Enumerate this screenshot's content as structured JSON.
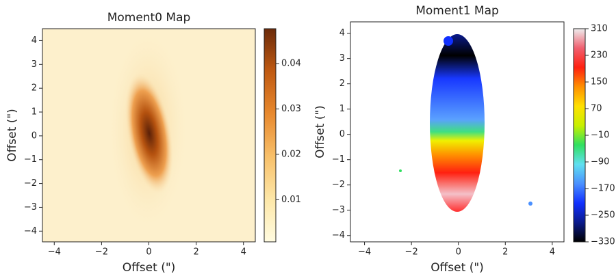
{
  "chart_data": [
    {
      "type": "heatmap",
      "title": "Moment0 Map",
      "xlabel": "Offset (\")",
      "ylabel": "Offset (\")",
      "xlim": [
        -4.5,
        4.5
      ],
      "ylim": [
        -4.45,
        4.5
      ],
      "xticks": [
        {
          "value": -4,
          "label": "−4"
        },
        {
          "value": -2,
          "label": "−2"
        },
        0,
        2,
        4
      ],
      "yticks": [
        {
          "value": -4,
          "label": "−4"
        },
        {
          "value": -3,
          "label": "−3"
        },
        {
          "value": -2,
          "label": "−2"
        },
        {
          "value": -1,
          "label": "−1"
        },
        0,
        1,
        2,
        3,
        4
      ],
      "colorbar": {
        "lim": [
          0.0007,
          0.0477
        ],
        "ticks": [
          0.01,
          0.02,
          0.03,
          0.04
        ],
        "colors": [
          "#fffbe0",
          "#fde7a8",
          "#f8c06a",
          "#e8892e",
          "#c05a12",
          "#6b2a0a"
        ]
      }
    },
    {
      "type": "heatmap",
      "title": "Moment1 Map",
      "xlabel": "Offset (\")",
      "ylabel": "Offset (\")",
      "xlim": [
        -4.6,
        4.5
      ],
      "ylim": [
        -4.25,
        4.45
      ],
      "xticks": [
        {
          "value": -4,
          "label": "−4"
        },
        {
          "value": -2,
          "label": "−2"
        },
        0,
        2,
        4
      ],
      "yticks": [
        {
          "value": -4,
          "label": "−4"
        },
        {
          "value": -3,
          "label": "−3"
        },
        {
          "value": -2,
          "label": "−2"
        },
        {
          "value": -1,
          "label": "−1"
        },
        0,
        1,
        2,
        3,
        4
      ],
      "colorbar": {
        "lim": [
          -330,
          310
        ],
        "ticks": [
          {
            "value": -330,
            "label": "−330"
          },
          {
            "value": -250,
            "label": "−250"
          },
          {
            "value": -170,
            "label": "−170"
          },
          {
            "value": -90,
            "label": "−90"
          },
          {
            "value": -10,
            "label": "−10"
          },
          70,
          150,
          230,
          310
        ],
        "colors": [
          "#000000",
          "#0a1a8c",
          "#1030ff",
          "#4a90ff",
          "#60e0f0",
          "#30e060",
          "#c8f000",
          "#ffe000",
          "#ff9000",
          "#ff2010",
          "#f06070",
          "#eeeeee"
        ]
      }
    }
  ]
}
